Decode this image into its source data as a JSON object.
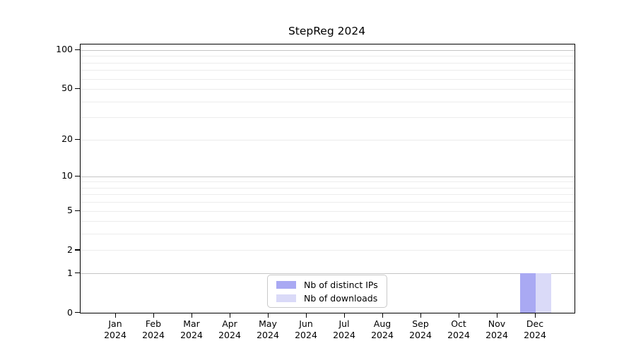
{
  "chart_data": {
    "type": "bar",
    "title": "StepReg 2024",
    "categories": [
      "Jan",
      "Feb",
      "Mar",
      "Apr",
      "May",
      "Jun",
      "Jul",
      "Aug",
      "Sep",
      "Oct",
      "Nov",
      "Dec"
    ],
    "year": "2024",
    "series": [
      {
        "name": "Nb of distinct IPs",
        "color": "#a9a9f3",
        "values": [
          0,
          0,
          0,
          0,
          0,
          0,
          0,
          0,
          0,
          0,
          0,
          1
        ]
      },
      {
        "name": "Nb of downloads",
        "color": "#dadaf8",
        "values": [
          0,
          0,
          0,
          0,
          0,
          0,
          0,
          0,
          0,
          0,
          0,
          1
        ]
      }
    ],
    "y_axis": {
      "ticks": [
        0,
        1,
        2,
        5,
        10,
        20,
        50,
        100
      ],
      "scale": "log1p",
      "ylim": [
        0,
        110
      ]
    },
    "gridlines_strong": [
      1,
      10,
      100
    ],
    "gridlines_light": [
      2,
      3,
      4,
      5,
      6,
      7,
      8,
      9,
      20,
      30,
      40,
      50,
      60,
      70,
      80,
      90
    ],
    "grid": true,
    "legend": {
      "position": "inside-bottom-center"
    }
  }
}
